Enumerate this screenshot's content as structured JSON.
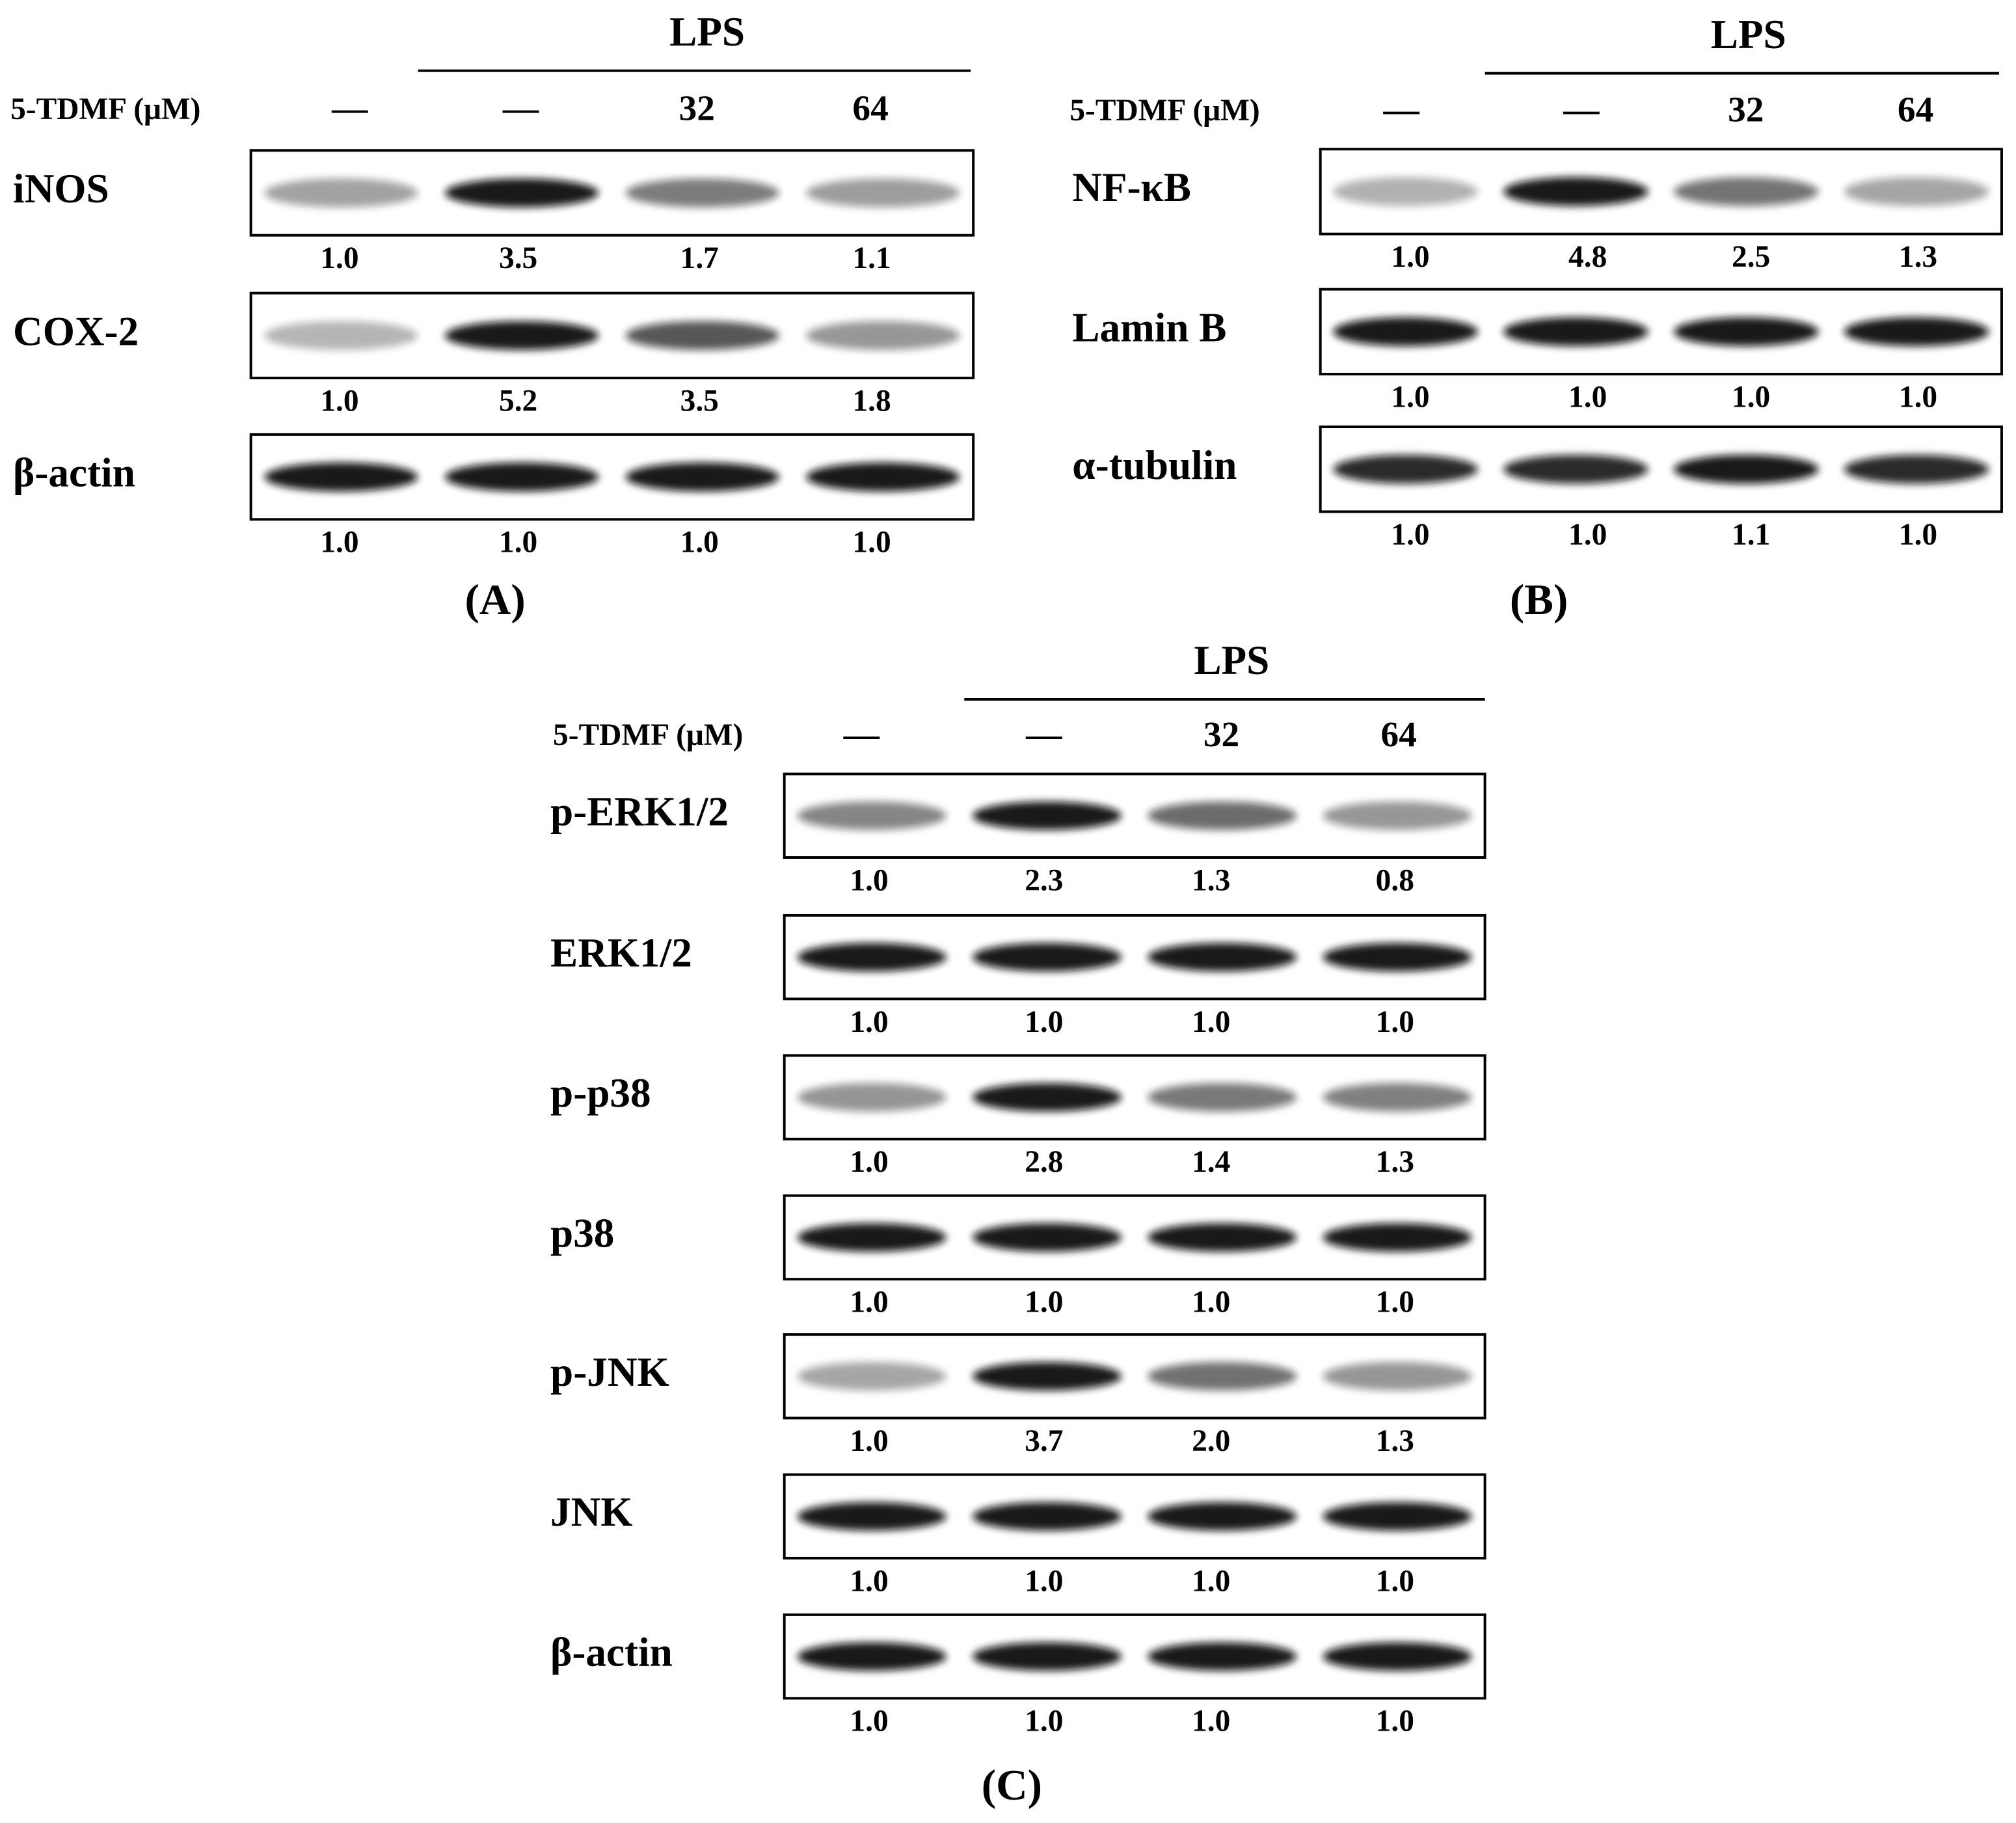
{
  "panels": [
    {
      "label": "(A)",
      "header": "LPS",
      "treatment_label": "5-TDMF (μM)",
      "lanes": [
        "—",
        "—",
        "32",
        "64"
      ],
      "rows": [
        {
          "name": "iNOS",
          "values": [
            "1.0",
            "3.5",
            "1.7",
            "1.1"
          ]
        },
        {
          "name": "COX-2",
          "values": [
            "1.0",
            "5.2",
            "3.5",
            "1.8"
          ]
        },
        {
          "name": "β-actin",
          "values": [
            "1.0",
            "1.0",
            "1.0",
            "1.0"
          ]
        }
      ]
    },
    {
      "label": "(B)",
      "header": "LPS",
      "treatment_label": "5-TDMF (μM)",
      "lanes": [
        "—",
        "—",
        "32",
        "64"
      ],
      "rows": [
        {
          "name": "NF-κB",
          "values": [
            "1.0",
            "4.8",
            "2.5",
            "1.3"
          ]
        },
        {
          "name": "Lamin B",
          "values": [
            "1.0",
            "1.0",
            "1.0",
            "1.0"
          ]
        },
        {
          "name": "α-tubulin",
          "values": [
            "1.0",
            "1.0",
            "1.1",
            "1.0"
          ]
        }
      ]
    },
    {
      "label": "(C)",
      "header": "LPS",
      "treatment_label": "5-TDMF (μM)",
      "lanes": [
        "—",
        "—",
        "32",
        "64"
      ],
      "rows": [
        {
          "name": "p-ERK1/2",
          "values": [
            "1.0",
            "2.3",
            "1.3",
            "0.8"
          ]
        },
        {
          "name": "ERK1/2",
          "values": [
            "1.0",
            "1.0",
            "1.0",
            "1.0"
          ]
        },
        {
          "name": "p-p38",
          "values": [
            "1.0",
            "2.8",
            "1.4",
            "1.3"
          ]
        },
        {
          "name": "p38",
          "values": [
            "1.0",
            "1.0",
            "1.0",
            "1.0"
          ]
        },
        {
          "name": "p-JNK",
          "values": [
            "1.0",
            "3.7",
            "2.0",
            "1.3"
          ]
        },
        {
          "name": "JNK",
          "values": [
            "1.0",
            "1.0",
            "1.0",
            "1.0"
          ]
        },
        {
          "name": "β-actin",
          "values": [
            "1.0",
            "1.0",
            "1.0",
            "1.0"
          ]
        }
      ]
    }
  ]
}
